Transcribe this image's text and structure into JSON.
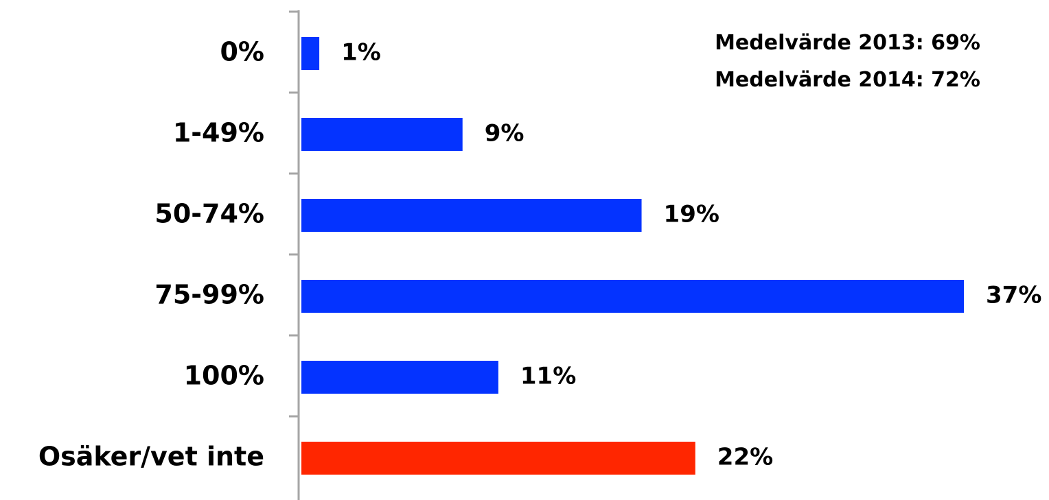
{
  "chart_data": {
    "type": "bar",
    "orientation": "horizontal",
    "categories": [
      "0%",
      "1-49%",
      "50-74%",
      "75-99%",
      "100%",
      "Osäker/vet inte"
    ],
    "values": [
      1,
      9,
      19,
      37,
      11,
      22
    ],
    "value_labels": [
      "1%",
      "9%",
      "19%",
      "37%",
      "11%",
      "22%"
    ],
    "bar_colors": [
      "#0433ff",
      "#0433ff",
      "#0433ff",
      "#0433ff",
      "#0433ff",
      "#ff2600"
    ],
    "axis_color": "#a6a6a6",
    "xlim": [
      0,
      37
    ],
    "grid": false,
    "annotations": [
      "Medelvärde 2013: 69%",
      "Medelvärde 2014: 72%"
    ]
  }
}
